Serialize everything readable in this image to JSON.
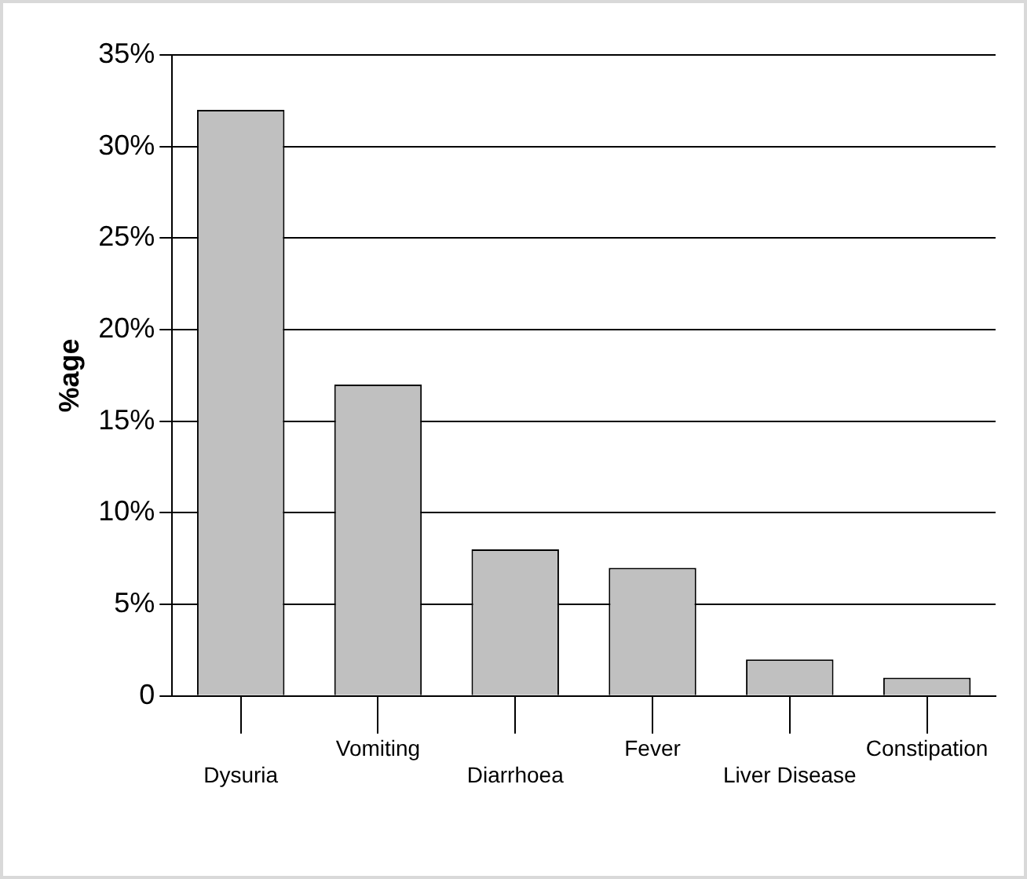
{
  "chart_data": {
    "type": "bar",
    "ylabel": "%age",
    "categories": [
      "Dysuria",
      "Vomiting",
      "Diarrhoea",
      "Fever",
      "Liver Disease",
      "Constipation"
    ],
    "values": [
      32,
      17,
      8,
      7,
      2,
      1
    ],
    "color": "#c0c0c0",
    "ylim": [
      0,
      35
    ],
    "yticks": [
      {
        "value": 0,
        "label": "0"
      },
      {
        "value": 5,
        "label": "5%"
      },
      {
        "value": 10,
        "label": "10%"
      },
      {
        "value": 15,
        "label": "15%"
      },
      {
        "value": 20,
        "label": "20%"
      },
      {
        "value": 25,
        "label": "25%"
      },
      {
        "value": 30,
        "label": "30%"
      },
      {
        "value": 35,
        "label": "35%"
      }
    ],
    "grid": "y"
  }
}
